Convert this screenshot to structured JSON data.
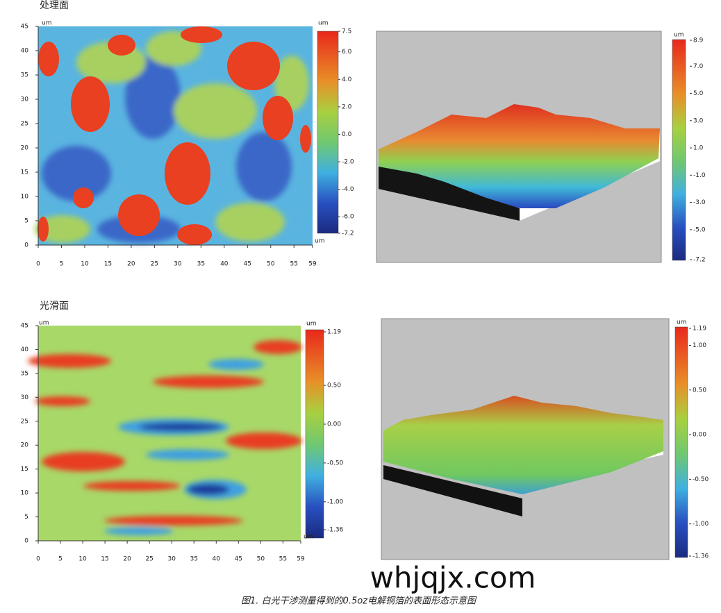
{
  "panels": [
    {
      "title": "处理面",
      "map_unit": "um",
      "x_ticks": [
        "0",
        "5",
        "10",
        "15",
        "20",
        "25",
        "30",
        "35",
        "40",
        "45",
        "50",
        "55",
        "59"
      ],
      "y_ticks": [
        "0",
        "5",
        "10",
        "15",
        "20",
        "25",
        "30",
        "35",
        "40",
        "45"
      ],
      "map_colorbar": {
        "unit": "um",
        "unit_bottom": "um",
        "ticks": [
          "7.5",
          "6.0",
          "4.0",
          "2.0",
          "0.0",
          "-2.0",
          "-4.0",
          "-6.0",
          "-7.2"
        ]
      },
      "surface_colorbar": {
        "unit": "um",
        "ticks": [
          "8.9",
          "7.0",
          "5.0",
          "3.0",
          "1.0",
          "-1.0",
          "-3.0",
          "-5.0",
          "-7.2"
        ]
      }
    },
    {
      "title": "光滑面",
      "map_unit": "um",
      "x_ticks": [
        "0",
        "5",
        "10",
        "15",
        "20",
        "25",
        "30",
        "35",
        "40",
        "45",
        "50",
        "55",
        "59"
      ],
      "y_ticks": [
        "0",
        "5",
        "10",
        "15",
        "20",
        "25",
        "30",
        "35",
        "40",
        "45"
      ],
      "map_colorbar": {
        "unit": "um",
        "unit_bottom": "um",
        "ticks": [
          "1.19",
          "0.50",
          "0.00",
          "-0.50",
          "-1.00",
          "-1.36"
        ]
      },
      "surface_colorbar": {
        "unit": "um",
        "ticks": [
          "1.19",
          "1.00",
          "0.50",
          "0.00",
          "-0.50",
          "-1.00",
          "-1.36"
        ]
      }
    }
  ],
  "watermark": "whjqjx.com",
  "caption": "图1. 白光干涉测量得到的0.5oz电解铜箔的表面形态示意图"
}
